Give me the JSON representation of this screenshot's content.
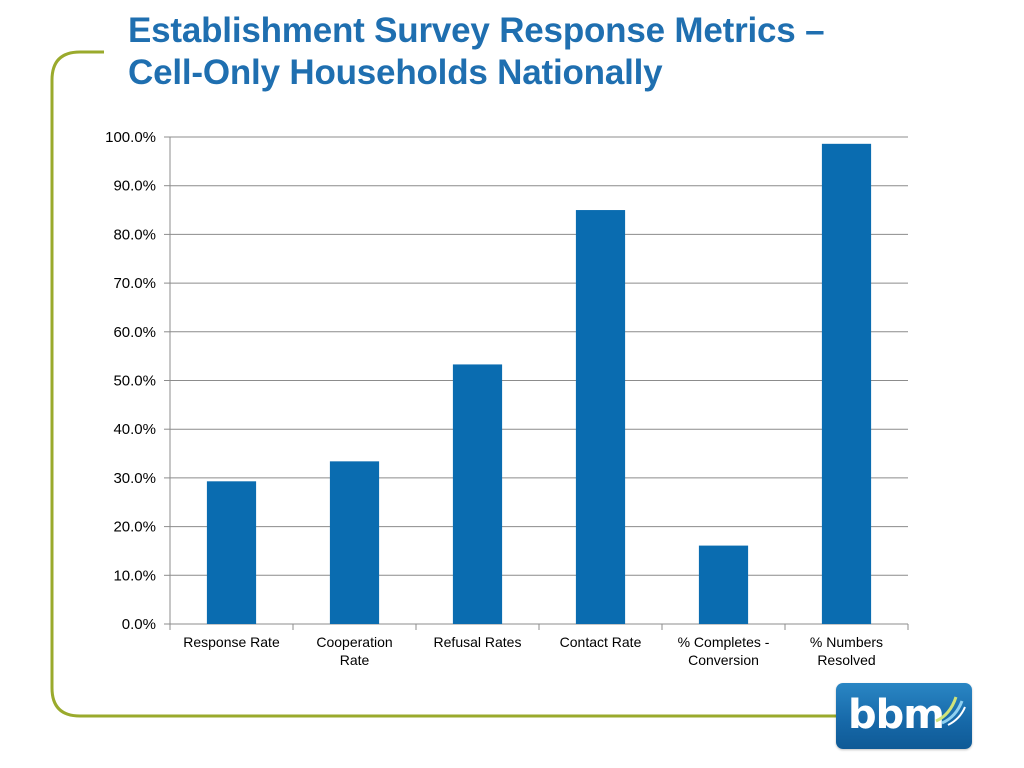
{
  "slide": {
    "title_line1": "Establishment Survey Response Metrics –",
    "title_line2": "Cell-Only Households Nationally",
    "logo_text": "bbm",
    "colors": {
      "title": "#1f6fb0",
      "bar": "#0a6cb0",
      "frame": "#9aaa2c",
      "grid": "#8c8c8c"
    }
  },
  "chart_data": {
    "type": "bar",
    "title": "",
    "xlabel": "",
    "ylabel": "",
    "categories": [
      [
        "Response Rate"
      ],
      [
        "Cooperation",
        "Rate"
      ],
      [
        "Refusal Rates"
      ],
      [
        "Contact Rate"
      ],
      [
        "% Completes -",
        "Conversion"
      ],
      [
        "% Numbers",
        "Resolved"
      ]
    ],
    "values": [
      29.3,
      33.4,
      53.3,
      85.0,
      16.1,
      98.6
    ],
    "ylim": [
      0,
      100
    ],
    "yticks": [
      "0.0%",
      "10.0%",
      "20.0%",
      "30.0%",
      "40.0%",
      "50.0%",
      "60.0%",
      "70.0%",
      "80.0%",
      "90.0%",
      "100.0%"
    ],
    "grid": true,
    "legend": "none"
  }
}
